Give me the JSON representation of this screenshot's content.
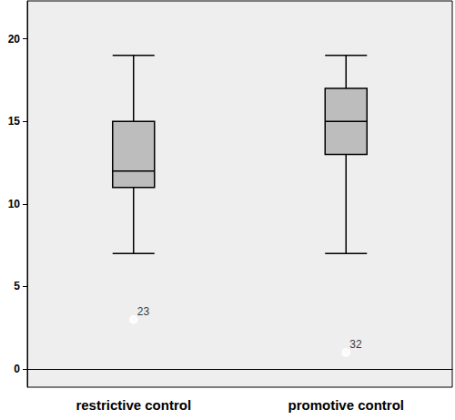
{
  "chart_data": {
    "type": "boxplot",
    "categories": [
      "restrictive control",
      "promotive control"
    ],
    "boxes": [
      [
        7,
        11,
        12,
        15,
        19
      ],
      [
        7,
        13,
        15,
        17,
        19
      ]
    ],
    "outliers": [
      {
        "category": "restrictive control",
        "value": 3,
        "label": "23"
      },
      {
        "category": "promotive control",
        "value": 1,
        "label": "32"
      }
    ],
    "color": "#bdbdbd",
    "ylim": [
      -1.1,
      22.3
    ],
    "yticks": [
      0,
      5,
      10,
      15,
      20
    ],
    "grid": false
  }
}
